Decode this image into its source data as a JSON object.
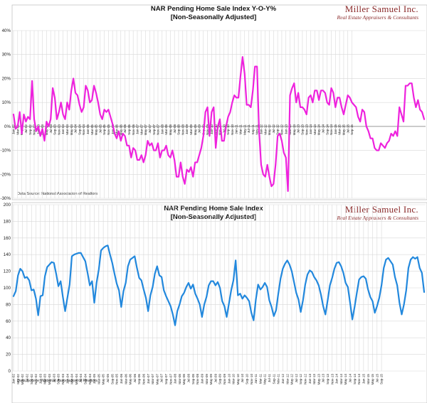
{
  "chart_data": [
    {
      "type": "line",
      "title_line1": "NAR Pending Home Sale Index Y-O-Y%",
      "title_line2": "[Non-Seasonally Adjusted]",
      "source": "Data Source: National Association of Realtors",
      "brand_name": "Miller Samuel Inc.",
      "brand_tagline": "Real Estate Appraisers & Consultants",
      "ylim": [
        -30,
        40
      ],
      "yticks": [
        -30,
        -20,
        -10,
        0,
        10,
        20,
        30,
        40
      ],
      "ytick_labels": [
        "-30%",
        "-20%",
        "-10%",
        "0%",
        "10%",
        "20%",
        "30%",
        "40%"
      ],
      "line_color": "#ee22dd",
      "x_labels": [
        "Jan-02",
        "Mar-02",
        "May-02",
        "Jul-02",
        "Sep-02",
        "Nov-02",
        "Jan-03",
        "Mar-03",
        "May-03",
        "Jul-03",
        "Sep-03",
        "Nov-03",
        "Jan-04",
        "Mar-04",
        "May-04",
        "Jul-04",
        "Sep-04",
        "Nov-04",
        "Jan-05",
        "Mar-05",
        "May-05",
        "Jul-05",
        "Sep-05",
        "Nov-05",
        "Jan-06",
        "Mar-06",
        "May-06",
        "Jul-06",
        "Sep-06",
        "Nov-06",
        "Jan-07",
        "Mar-07",
        "May-07",
        "Jul-07",
        "Sep-07",
        "Nov-07",
        "Jan-08",
        "Mar-08",
        "May-08",
        "Jul-08",
        "Sep-08",
        "Nov-08",
        "Jan-09",
        "Mar-09",
        "May-09",
        "Jul-09",
        "Sep-09",
        "Nov-09",
        "Jan-10",
        "Mar-10",
        "May-10",
        "Jul-10",
        "Sep-10",
        "Nov-10",
        "Jan-11",
        "Mar-11",
        "May-11",
        "Jul-11",
        "Sep-11",
        "Nov-11",
        "Jan-12",
        "Mar-12",
        "May-12",
        "Jul-12",
        "Sep-12",
        "Nov-12",
        "Jan-13",
        "Mar-13",
        "May-13",
        "Jul-13",
        "Sep-13",
        "Nov-13",
        "Jan-14",
        "Mar-14",
        "May-14",
        "Jul-14",
        "Sep-14",
        "Nov-14",
        "Jan-15",
        "Mar-15",
        "May-15",
        "Jul-15",
        "Sep-15"
      ],
      "values": [
        5,
        -1,
        0,
        6,
        -3,
        5,
        2,
        4,
        3,
        19,
        3,
        -2,
        0,
        -4,
        -1,
        -6,
        2,
        0,
        3,
        16,
        12,
        3,
        6,
        10,
        5,
        3,
        10,
        7,
        15,
        20,
        14,
        13,
        9,
        6,
        8,
        17,
        15,
        10,
        11,
        17,
        14,
        10,
        5,
        3,
        7,
        6,
        7,
        4,
        1,
        -3,
        -5,
        -2,
        -6,
        -3,
        -4,
        -8,
        -8,
        -13,
        -9,
        -10,
        -14,
        -14,
        -12,
        -15,
        -12,
        -6,
        -8,
        -7,
        -10,
        -10,
        -7,
        -13,
        -10,
        -10,
        -8,
        -12,
        -13,
        -10,
        -14,
        -21,
        -21,
        -15,
        -21,
        -24,
        -18,
        -19,
        -17,
        -21,
        -15,
        -15,
        -12,
        -9,
        -4,
        6,
        8,
        -4,
        6,
        8,
        -9,
        0,
        3,
        -6,
        -6,
        0,
        4,
        6,
        10,
        13,
        12,
        12,
        21,
        29,
        22,
        9,
        9,
        8,
        15,
        25,
        25,
        -2,
        -16,
        -20,
        -21,
        -16,
        -21,
        -25,
        -24,
        -16,
        -4,
        -3,
        -6,
        -11,
        -13,
        -27,
        13,
        16,
        18,
        10,
        14,
        8,
        8,
        7,
        5,
        12,
        13,
        10,
        15,
        15,
        11,
        15,
        15,
        14,
        10,
        9,
        16,
        14,
        8,
        12,
        12,
        8,
        5,
        9,
        13,
        12,
        10,
        9,
        8,
        4,
        2,
        7,
        6,
        0,
        -2,
        -5,
        -5,
        -9,
        -10,
        -10,
        -7,
        -8,
        -9,
        -7,
        -6,
        -3,
        -4,
        -2,
        -4,
        8,
        5,
        2,
        17,
        17,
        18,
        18,
        12,
        8,
        11,
        7,
        6,
        3
      ]
    },
    {
      "type": "line",
      "title_line1": "NAR Pending Home Sale Index",
      "title_line2": "[Non-Seasonally Adjusted]",
      "source": "Data Source: National Association of Realtors",
      "brand_name": "Miller Samuel Inc.",
      "brand_tagline": "Real Estate Appraisers & Consultants",
      "ylim": [
        0,
        200
      ],
      "yticks": [
        0,
        20,
        40,
        60,
        80,
        100,
        120,
        140,
        160,
        180,
        200
      ],
      "ytick_labels": [
        "0",
        "20",
        "40",
        "60",
        "80",
        "100",
        "120",
        "140",
        "160",
        "180",
        "200"
      ],
      "line_color": "#2288dd",
      "x_labels": [
        "Jan-02",
        "Mar-02",
        "May-02",
        "Jul-02",
        "Sep-02",
        "Nov-02",
        "Jan-03",
        "Mar-03",
        "May-03",
        "Jul-03",
        "Sep-03",
        "Nov-03",
        "Jan-04",
        "Mar-04",
        "May-04",
        "Jul-04",
        "Sep-04",
        "Nov-04",
        "Jan-05",
        "Mar-05",
        "May-05",
        "Jul-05",
        "Sep-05",
        "Nov-05",
        "Jan-06",
        "Mar-06",
        "May-06",
        "Jul-06",
        "Sep-06",
        "Nov-06",
        "Jan-07",
        "Mar-07",
        "May-07",
        "Jul-07",
        "Sep-07",
        "Nov-07",
        "Jan-08",
        "Mar-08",
        "May-08",
        "Jul-08",
        "Sep-08",
        "Nov-08",
        "Jan-09",
        "Mar-09",
        "May-09",
        "Jul-09",
        "Sep-09",
        "Nov-09",
        "Jan-10",
        "Mar-10",
        "May-10",
        "Jul-10",
        "Sep-10",
        "Nov-10",
        "Jan-11",
        "Mar-11",
        "May-11",
        "Jul-11",
        "Sep-11",
        "Nov-11",
        "Jan-12",
        "Mar-12",
        "May-12",
        "Jul-12",
        "Sep-12",
        "Nov-12",
        "Jan-13",
        "Mar-13",
        "May-13",
        "Jul-13",
        "Sep-13",
        "Nov-13",
        "Jan-14",
        "Mar-14",
        "May-14",
        "Jul-14",
        "Sep-14",
        "Nov-14",
        "Jan-15",
        "Mar-15",
        "May-15",
        "Jul-15",
        "Sep-15"
      ],
      "values": [
        90,
        96,
        115,
        123,
        120,
        112,
        113,
        109,
        97,
        98,
        87,
        67,
        90,
        91,
        114,
        125,
        128,
        131,
        130,
        117,
        102,
        108,
        89,
        72,
        88,
        104,
        138,
        140,
        141,
        142,
        142,
        137,
        132,
        118,
        103,
        108,
        82,
        106,
        122,
        145,
        148,
        150,
        151,
        140,
        130,
        117,
        105,
        97,
        77,
        96,
        106,
        126,
        134,
        136,
        138,
        124,
        112,
        109,
        98,
        88,
        72,
        91,
        101,
        117,
        126,
        115,
        113,
        97,
        90,
        84,
        78,
        68,
        55,
        72,
        80,
        90,
        94,
        101,
        106,
        99,
        104,
        93,
        87,
        80,
        65,
        80,
        89,
        103,
        108,
        108,
        103,
        107,
        100,
        84,
        78,
        65,
        81,
        97,
        109,
        133,
        91,
        93,
        87,
        91,
        88,
        84,
        70,
        61,
        86,
        104,
        98,
        101,
        106,
        101,
        85,
        77,
        66,
        73,
        93,
        111,
        123,
        129,
        133,
        128,
        120,
        107,
        94,
        86,
        71,
        85,
        104,
        116,
        121,
        119,
        113,
        109,
        103,
        92,
        78,
        68,
        85,
        103,
        112,
        123,
        130,
        131,
        126,
        118,
        106,
        101,
        82,
        62,
        77,
        94,
        110,
        113,
        114,
        111,
        98,
        89,
        84,
        70,
        78,
        88,
        103,
        124,
        134,
        136,
        132,
        128,
        113,
        103,
        82,
        68,
        80,
        97,
        124,
        134,
        137,
        135,
        137,
        124,
        118,
        95
      ]
    }
  ]
}
